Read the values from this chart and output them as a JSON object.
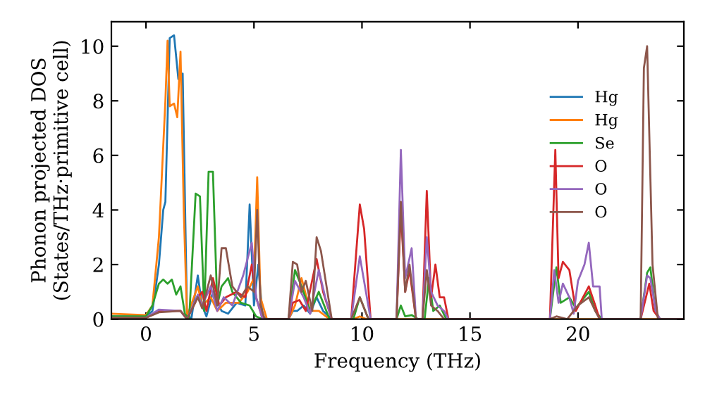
{
  "chart_data": {
    "type": "line",
    "xlabel": "Frequency (THz)",
    "ylabel": "Phonon projected DOS\n(States/THz·primitive cell)",
    "xlim": [
      -1.6,
      24.9
    ],
    "ylim": [
      0,
      10.9
    ],
    "xticks": [
      0,
      5,
      10,
      15,
      20
    ],
    "yticks": [
      0,
      2,
      4,
      6,
      8,
      10
    ],
    "grid": false,
    "legend": "right",
    "marker": "none",
    "line_style": "solid",
    "series": [
      {
        "name": "Hg",
        "color": "#1f77b4",
        "x": [
          -1.6,
          0,
          0.3,
          0.6,
          0.8,
          0.9,
          1.1,
          1.3,
          1.5,
          1.7,
          1.9,
          2.1,
          2.4,
          2.6,
          2.8,
          3.1,
          3.5,
          3.8,
          4.2,
          4.6,
          4.8,
          5.0,
          5.2,
          5.4,
          5.6,
          6.6,
          6.8,
          7.0,
          7.3,
          7.6,
          7.9,
          8.2,
          8.6,
          9.6
        ],
        "values": [
          0.1,
          0.1,
          0.3,
          2,
          4,
          4.3,
          10.3,
          10.4,
          8.8,
          9,
          0.2,
          0,
          1.6,
          0.5,
          0.1,
          1.0,
          0.3,
          0.2,
          0.6,
          0.5,
          4.2,
          0.5,
          2,
          0.1,
          0,
          0,
          0.3,
          0.3,
          0.5,
          0.2,
          0.8,
          0.3,
          0,
          0
        ]
      },
      {
        "name": "Hg",
        "color": "#ff7f0e",
        "x": [
          -1.6,
          0,
          0.3,
          0.6,
          0.9,
          1.0,
          1.1,
          1.3,
          1.45,
          1.6,
          1.75,
          1.9,
          2.4,
          2.6,
          3.0,
          3.3,
          3.7,
          4.3,
          4.7,
          5.0,
          5.15,
          5.3,
          5.6,
          6.6,
          6.9,
          7.2,
          7.6,
          8.0,
          8.5,
          9.6,
          9.9,
          10.2,
          24.9
        ],
        "values": [
          0.2,
          0.15,
          0.5,
          3,
          8,
          10.2,
          7.8,
          7.9,
          7.4,
          9.8,
          4,
          0.1,
          1.2,
          0.5,
          0.8,
          0.3,
          0.6,
          0.6,
          1.0,
          1.5,
          5.2,
          0.8,
          0,
          0,
          0.5,
          1.5,
          0.3,
          0.3,
          0,
          0,
          0.1,
          0,
          0
        ]
      },
      {
        "name": "Se",
        "color": "#2ca02c",
        "x": [
          -1.6,
          0,
          0.3,
          0.6,
          0.8,
          1.0,
          1.2,
          1.4,
          1.6,
          1.8,
          2.0,
          2.3,
          2.5,
          2.7,
          2.9,
          3.1,
          3.3,
          3.5,
          3.8,
          4.0,
          4.4,
          4.8,
          5.1,
          5.4,
          6.6,
          6.9,
          7.2,
          7.6,
          8.0,
          8.5,
          9.6,
          9.9,
          10.3,
          11.6,
          11.8,
          12.0,
          12.3,
          12.6,
          12.9,
          13.1,
          13.3,
          13.6,
          13.9,
          18.7,
          19.0,
          19.2,
          19.6,
          19.9,
          20.2,
          20.5,
          20.8,
          21.1,
          22.9,
          23.2,
          23.35,
          23.6,
          23.8,
          24.9
        ],
        "values": [
          0.1,
          0.1,
          0.5,
          1.3,
          1.45,
          1.3,
          1.45,
          0.9,
          1.2,
          0.2,
          0,
          4.6,
          4.5,
          0.3,
          5.4,
          5.4,
          0.5,
          1.2,
          1.5,
          1.0,
          0.6,
          0.5,
          0.1,
          0,
          0,
          1.8,
          1.2,
          0.3,
          1.0,
          0,
          0,
          0.8,
          0,
          0,
          0.5,
          0.1,
          0.15,
          0,
          0,
          1.5,
          0.3,
          0.5,
          0,
          0,
          1.9,
          0.6,
          0.8,
          0.4,
          0.7,
          1.0,
          0.3,
          0,
          0,
          1.7,
          1.9,
          0.2,
          0,
          0
        ]
      },
      {
        "name": "O",
        "color": "#d62728",
        "x": [
          -1.6,
          0,
          0.6,
          1.6,
          1.9,
          2.4,
          2.6,
          2.8,
          3.1,
          3.4,
          3.7,
          4.2,
          4.6,
          4.9,
          5.1,
          5.4,
          6.6,
          6.8,
          7.1,
          7.4,
          7.9,
          8.2,
          8.6,
          9.5,
          9.9,
          10.1,
          10.4,
          11.6,
          11.8,
          12.0,
          12.2,
          12.5,
          12.8,
          13.0,
          13.2,
          13.4,
          13.6,
          13.8,
          14.0,
          18.7,
          18.95,
          19.1,
          19.3,
          19.6,
          19.9,
          20.5,
          20.8,
          21.0,
          22.9,
          23.3,
          23.5,
          23.8,
          24.9
        ],
        "values": [
          0.05,
          0.05,
          0.3,
          0.3,
          0,
          0.8,
          1.0,
          0.3,
          1.5,
          0.5,
          0.8,
          1.0,
          0.8,
          2.0,
          0.8,
          0,
          0,
          0.6,
          0.7,
          0.3,
          2.2,
          1.0,
          0,
          0,
          4.2,
          3.3,
          0,
          0,
          4.0,
          1.0,
          1.8,
          0,
          0,
          4.7,
          0.8,
          2.0,
          0.8,
          0.8,
          0,
          0,
          6.2,
          1.5,
          2.1,
          1.8,
          0.3,
          1.2,
          0.5,
          0,
          0,
          1.3,
          0.3,
          0,
          0
        ]
      },
      {
        "name": "O",
        "color": "#9467bd",
        "x": [
          -1.6,
          0,
          0.6,
          1.6,
          1.9,
          2.4,
          2.6,
          3.0,
          3.3,
          3.6,
          4.0,
          4.5,
          4.9,
          5.1,
          5.4,
          6.6,
          6.9,
          7.3,
          7.6,
          8.0,
          8.3,
          8.6,
          9.5,
          9.9,
          10.4,
          11.6,
          11.8,
          12.0,
          12.3,
          12.5,
          12.8,
          13.0,
          13.2,
          13.5,
          13.8,
          14.0,
          18.7,
          18.9,
          19.1,
          19.3,
          19.6,
          19.8,
          20.0,
          20.3,
          20.5,
          20.7,
          21.0,
          21.1,
          22.9,
          23.2,
          23.35,
          23.6,
          23.8,
          24.9
        ],
        "values": [
          0.05,
          0.05,
          0.35,
          0.3,
          0,
          0.9,
          0.5,
          1.2,
          0.3,
          0.8,
          0.5,
          1.6,
          2.8,
          0.8,
          0,
          0,
          1.4,
          0.8,
          0.2,
          1.8,
          0.8,
          0,
          0,
          2.3,
          0,
          0,
          6.2,
          1.5,
          2.6,
          0,
          0,
          3.0,
          1.0,
          0.5,
          0.3,
          0,
          0,
          1.8,
          0.6,
          1.3,
          0.8,
          0.2,
          1.4,
          2.0,
          2.8,
          1.2,
          1.2,
          0,
          0,
          1.6,
          1.5,
          0.3,
          0,
          0
        ]
      },
      {
        "name": "O",
        "color": "#8c564b",
        "x": [
          -1.6,
          0,
          0.6,
          1.6,
          1.9,
          2.4,
          2.6,
          3.0,
          3.3,
          3.5,
          3.7,
          4.0,
          4.4,
          4.7,
          5.0,
          5.15,
          5.3,
          5.5,
          6.6,
          6.8,
          7.0,
          7.2,
          7.4,
          7.7,
          7.9,
          8.1,
          8.6,
          9.5,
          9.9,
          10.3,
          11.6,
          11.8,
          12.0,
          12.2,
          12.5,
          12.8,
          13.0,
          13.2,
          13.5,
          13.8,
          18.7,
          19.0,
          19.5,
          20.0,
          20.5,
          20.8,
          21.0,
          22.9,
          23.05,
          23.2,
          23.45,
          23.7,
          24.9
        ],
        "values": [
          0.05,
          0.05,
          0.25,
          0.3,
          0,
          0.8,
          0.4,
          1.6,
          0.5,
          2.6,
          2.6,
          1.2,
          0.8,
          1.2,
          1.0,
          4.0,
          0.5,
          0,
          0,
          2.1,
          2.0,
          1.0,
          1.4,
          0.3,
          3.0,
          2.5,
          0,
          0,
          0.8,
          0,
          0,
          4.3,
          1.0,
          2.0,
          0,
          0,
          1.8,
          0.5,
          0.3,
          0,
          0,
          0.1,
          0,
          0.5,
          0.8,
          0.3,
          0,
          0,
          9.2,
          10.0,
          2.0,
          0,
          0
        ]
      }
    ]
  }
}
